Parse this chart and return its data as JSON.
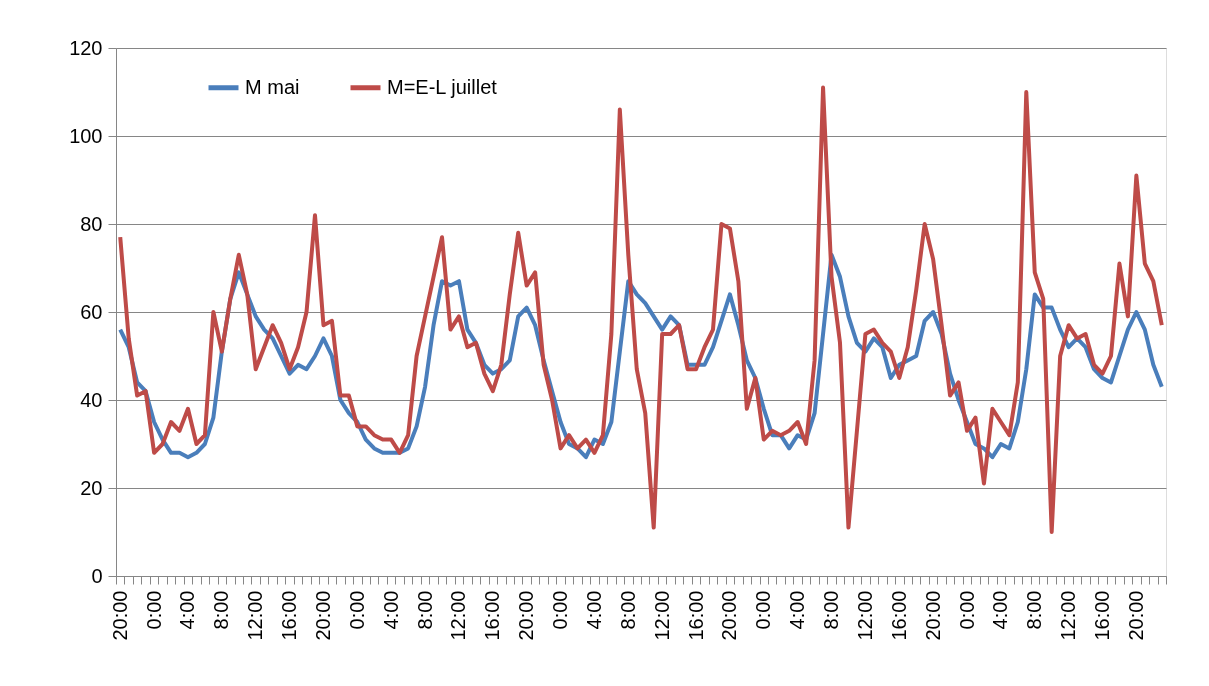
{
  "chart_data": {
    "type": "line",
    "categories": [
      "20:00",
      null,
      null,
      null,
      "0:00",
      null,
      null,
      null,
      "4:00",
      null,
      null,
      null,
      "8:00",
      null,
      null,
      null,
      "12:00",
      null,
      null,
      null,
      "16:00",
      null,
      null,
      null,
      "20:00",
      null,
      null,
      null,
      "0:00",
      null,
      null,
      null,
      "4:00",
      null,
      null,
      null,
      "8:00",
      null,
      null,
      null,
      "12:00",
      null,
      null,
      null,
      "16:00",
      null,
      null,
      null,
      "20:00",
      null,
      null,
      null,
      "0:00",
      null,
      null,
      null,
      "4:00",
      null,
      null,
      null,
      "8:00",
      null,
      null,
      null,
      "12:00",
      null,
      null,
      null,
      "16:00",
      null,
      null,
      null,
      "20:00",
      null,
      null,
      null,
      "0:00",
      null,
      null,
      null,
      "4:00",
      null,
      null,
      null,
      "8:00",
      null,
      null,
      null,
      "12:00",
      null,
      null,
      null,
      "16:00",
      null,
      null,
      null,
      "20:00",
      null,
      null,
      null,
      "0:00",
      null,
      null,
      null,
      "4:00",
      null,
      null,
      null,
      "8:00",
      null,
      null,
      null,
      "12:00",
      null,
      null,
      null,
      "16:00",
      null,
      null,
      null,
      "20:00",
      null,
      null,
      null
    ],
    "series": [
      {
        "name": "M mai",
        "color": "#4a7ebb",
        "values": [
          56,
          52,
          44,
          42,
          35,
          31,
          28,
          28,
          27,
          28,
          30,
          36,
          51,
          63,
          69,
          64,
          59,
          56,
          54,
          50,
          46,
          48,
          47,
          50,
          54,
          50,
          40,
          37,
          35,
          31,
          29,
          28,
          28,
          28,
          29,
          34,
          43,
          57,
          67,
          66,
          67,
          56,
          53,
          48,
          46,
          47,
          49,
          59,
          61,
          57,
          49,
          42,
          35,
          30,
          29,
          27,
          31,
          30,
          35,
          51,
          67,
          64,
          62,
          59,
          56,
          59,
          57,
          48,
          48,
          48,
          52,
          58,
          64,
          57,
          49,
          45,
          38,
          32,
          32,
          29,
          32,
          31,
          37,
          55,
          73,
          68,
          59,
          53,
          51,
          54,
          52,
          45,
          48,
          49,
          50,
          58,
          60,
          55,
          46,
          40,
          35,
          30,
          29,
          27,
          30,
          29,
          35,
          47,
          64,
          61,
          61,
          56,
          52,
          54,
          52,
          47,
          45,
          44,
          50,
          56,
          60,
          56,
          48,
          43
        ]
      },
      {
        "name": "M=E-L juillet",
        "color": "#be4b48",
        "values": [
          77,
          54,
          41,
          42,
          28,
          30,
          35,
          33,
          38,
          30,
          32,
          60,
          51,
          63,
          73,
          64,
          47,
          52,
          57,
          53,
          47,
          52,
          60,
          82,
          57,
          58,
          41,
          41,
          34,
          34,
          32,
          31,
          31,
          28,
          32,
          50,
          59,
          68,
          77,
          56,
          59,
          52,
          53,
          46,
          42,
          48,
          64,
          78,
          66,
          69,
          48,
          40,
          29,
          32,
          29,
          31,
          28,
          32,
          55,
          106,
          73,
          47,
          37,
          11,
          55,
          55,
          57,
          47,
          47,
          52,
          56,
          80,
          79,
          67,
          38,
          45,
          31,
          33,
          32,
          33,
          35,
          30,
          49,
          111,
          68,
          53,
          11,
          33,
          55,
          56,
          53,
          51,
          45,
          52,
          65,
          80,
          72,
          57,
          41,
          44,
          33,
          36,
          21,
          38,
          35,
          32,
          44,
          110,
          69,
          63,
          10,
          50,
          57,
          54,
          55,
          48,
          46,
          50,
          71,
          59,
          91,
          71,
          67,
          57
        ]
      }
    ],
    "ylim": [
      0,
      120
    ],
    "yticks": [
      0,
      20,
      40,
      60,
      80,
      100,
      120
    ],
    "grid": "y",
    "legend": "top left",
    "marker": "none",
    "line_style": "solid"
  }
}
